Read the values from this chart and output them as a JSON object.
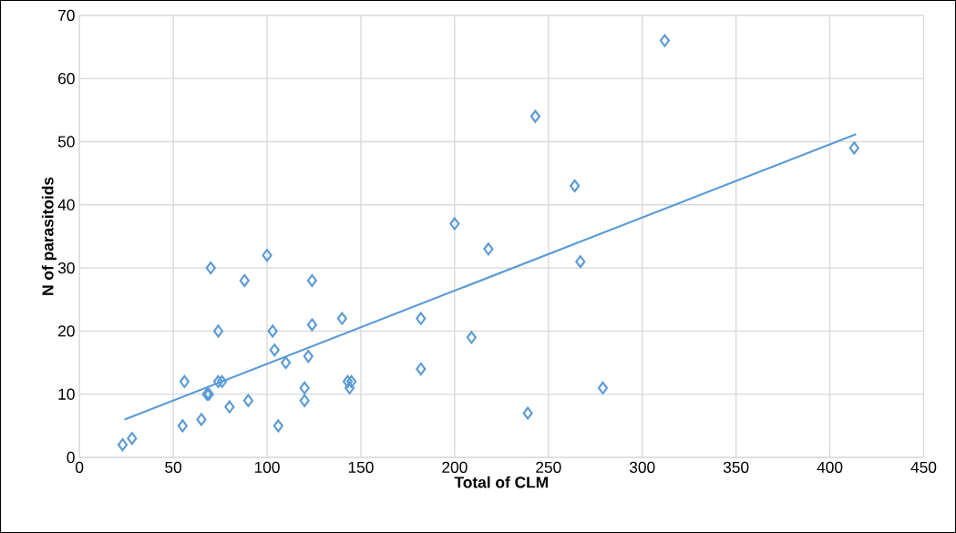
{
  "chart_data": {
    "type": "scatter",
    "xlabel": "Total of CLM",
    "ylabel": "N of parasitoids",
    "xlim": [
      0,
      450
    ],
    "ylim": [
      0,
      70
    ],
    "xticks": [
      0,
      50,
      100,
      150,
      200,
      250,
      300,
      350,
      400,
      450
    ],
    "yticks": [
      0,
      10,
      20,
      30,
      40,
      50,
      60,
      70
    ],
    "grid": true,
    "marker": "diamond",
    "series": [
      {
        "color": "#5b9bd5",
        "x": [
          23,
          28,
          55,
          56,
          65,
          68,
          69,
          74,
          76,
          74,
          70,
          80,
          88,
          90,
          100,
          103,
          104,
          106,
          110,
          120,
          120,
          122,
          124,
          124,
          140,
          143,
          144,
          145,
          182,
          182,
          200,
          209,
          218,
          239,
          243,
          264,
          267,
          279,
          312,
          413
        ],
        "values": [
          2,
          3,
          5,
          12,
          6,
          10,
          10,
          12,
          12,
          20,
          30,
          8,
          28,
          9,
          32,
          20,
          17,
          5,
          15,
          9,
          11,
          16,
          28,
          21,
          22,
          12,
          11,
          12,
          14,
          22,
          37,
          19,
          33,
          7,
          54,
          43,
          31,
          11,
          66,
          49
        ]
      },
      {
        "type": "line",
        "color": "#5b9bd5",
        "marker": "none",
        "x": [
          24,
          414
        ],
        "values": [
          6,
          51.2
        ]
      }
    ]
  }
}
